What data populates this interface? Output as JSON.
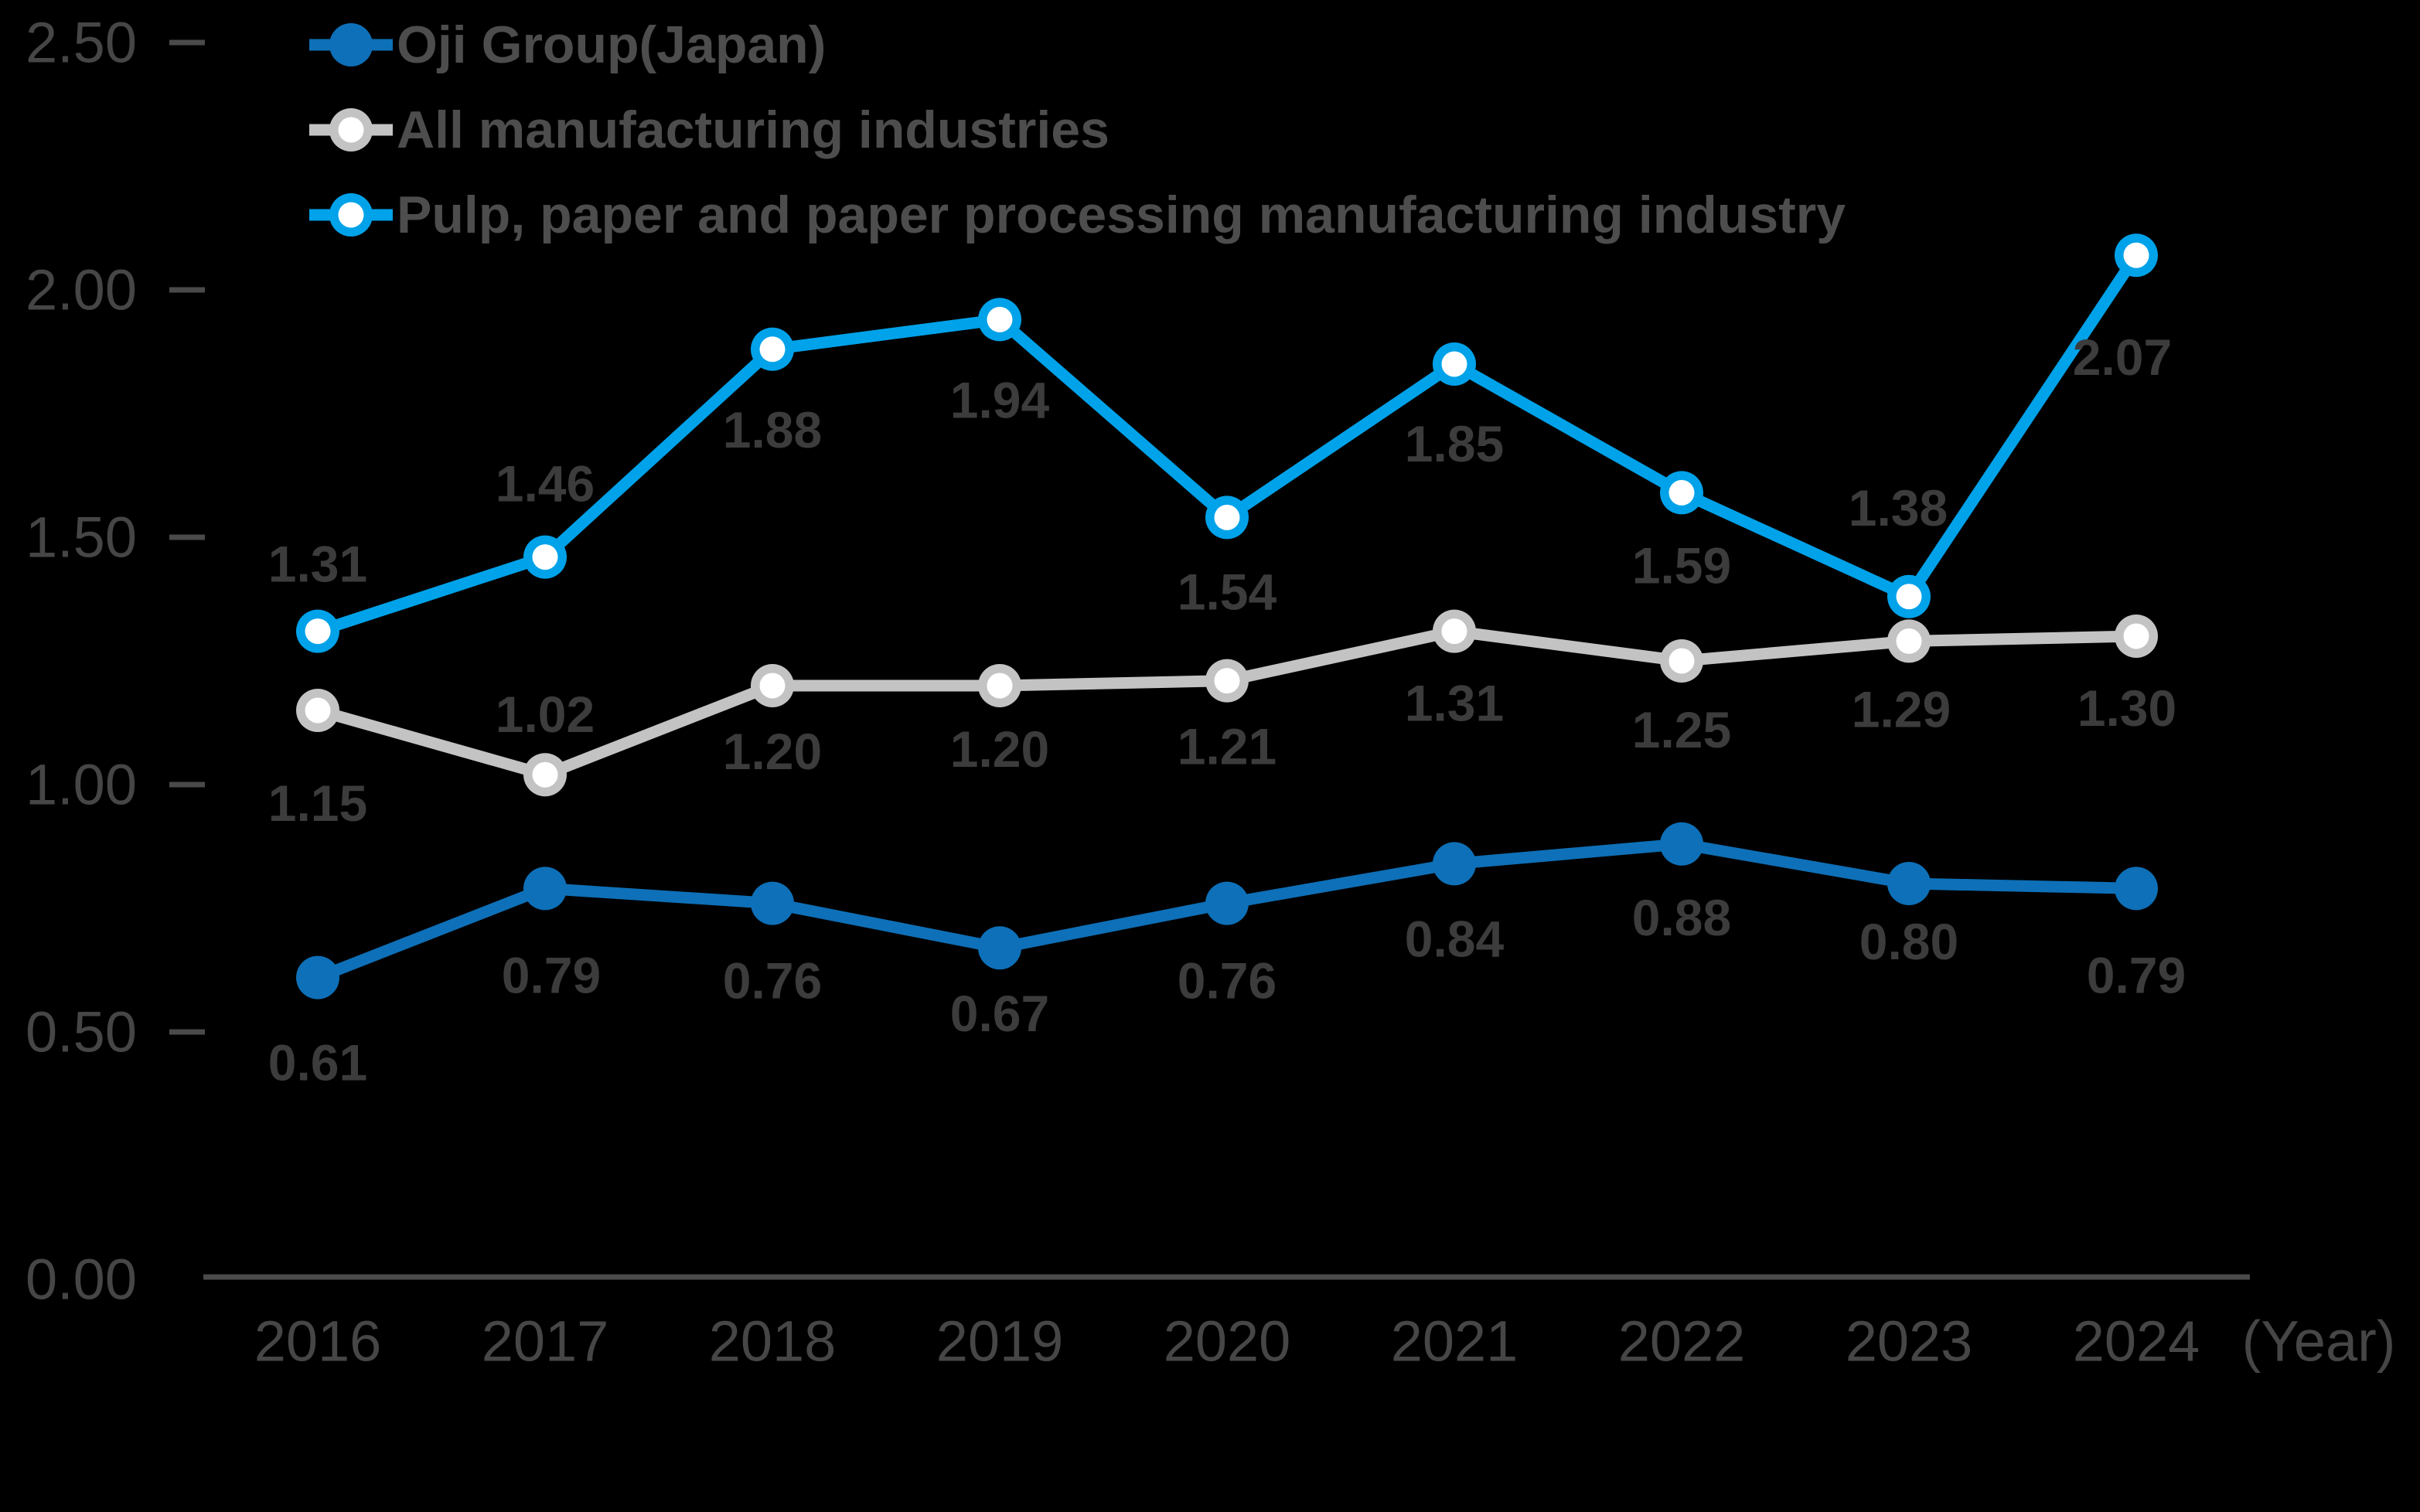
{
  "chart_data": {
    "type": "line",
    "title": "",
    "x_categories": [
      "2016",
      "2017",
      "2018",
      "2019",
      "2020",
      "2021",
      "2022",
      "2023",
      "2024"
    ],
    "xlabel": "(Year)",
    "yticks": [
      "0.00",
      "0.50",
      "1.00",
      "1.50",
      "2.00",
      "2.50"
    ],
    "ylim": [
      0,
      2.5
    ],
    "grid": false,
    "legend_position": "top-left",
    "colors": {
      "background": "#000000",
      "axis": "#4A4A4A",
      "tick_text": "#464646",
      "data_label_text": "#3C3C3C",
      "legend_text": "#4D4D4D",
      "marker_center": "#FFFFFF"
    },
    "series": [
      {
        "name": "Oji Group(Japan)",
        "color": "#0E70B8",
        "marker": "filled",
        "values": [
          0.61,
          0.79,
          0.76,
          0.67,
          0.76,
          0.84,
          0.88,
          0.8,
          0.79
        ],
        "labels": [
          "0.61",
          "0.79",
          "0.76",
          "0.67",
          "0.76",
          "0.84",
          "0.88",
          "0.80",
          "0.79"
        ],
        "label_offsets": [
          [
            0,
            110
          ],
          [
            8,
            112
          ],
          [
            0,
            100
          ],
          [
            0,
            85
          ],
          [
            0,
            100
          ],
          [
            0,
            97
          ],
          [
            0,
            95
          ],
          [
            0,
            75
          ],
          [
            0,
            112
          ]
        ]
      },
      {
        "name": "All manufacturing industries",
        "color": "#C3C3C3",
        "marker": "ring",
        "values": [
          1.15,
          1.02,
          1.2,
          1.2,
          1.21,
          1.31,
          1.25,
          1.29,
          1.3
        ],
        "labels": [
          "1.15",
          "1.02",
          "1.20",
          "1.20",
          "1.21",
          "1.31",
          "1.25",
          "1.29",
          "1.30"
        ],
        "label_offsets": [
          [
            0,
            120
          ],
          [
            0,
            -78
          ],
          [
            0,
            85
          ],
          [
            0,
            82
          ],
          [
            0,
            85
          ],
          [
            0,
            93
          ],
          [
            0,
            89
          ],
          [
            -10,
            88
          ],
          [
            -12,
            93
          ]
        ]
      },
      {
        "name": "Pulp, paper and paper processing manufacturing industry",
        "color": "#00A2E9",
        "marker": "ring",
        "values": [
          1.31,
          1.46,
          1.88,
          1.94,
          1.54,
          1.85,
          1.59,
          1.38,
          2.07
        ],
        "labels": [
          "1.31",
          "1.46",
          "1.88",
          "1.94",
          "1.54",
          "1.85",
          "1.59",
          "1.38",
          "2.07"
        ],
        "label_offsets": [
          [
            0,
            -87
          ],
          [
            0,
            -95
          ],
          [
            0,
            104
          ],
          [
            0,
            104
          ],
          [
            0,
            96
          ],
          [
            0,
            103
          ],
          [
            0,
            94
          ],
          [
            -14,
            -115
          ],
          [
            -18,
            132
          ]
        ]
      }
    ]
  }
}
